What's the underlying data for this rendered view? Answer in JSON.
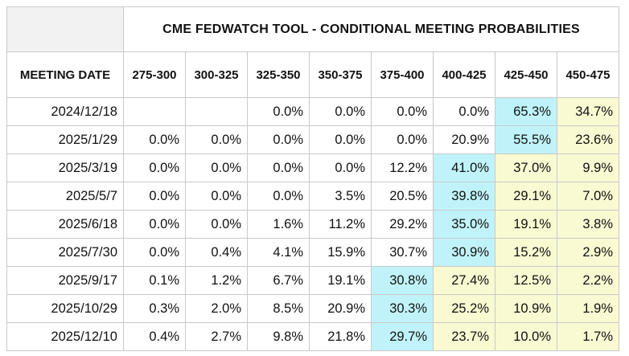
{
  "chart_data": {
    "type": "table",
    "title": "CME FEDWATCH TOOL - CONDITIONAL MEETING PROBABILITIES",
    "row_header_label": "MEETING DATE",
    "columns": [
      "275-300",
      "300-325",
      "325-350",
      "350-375",
      "375-400",
      "400-425",
      "425-450",
      "450-475"
    ],
    "rows": [
      {
        "date": "2024/12/18",
        "values": [
          "",
          "",
          "0.0%",
          "0.0%",
          "0.0%",
          "0.0%",
          "65.3%",
          "34.7%"
        ],
        "highlight": [
          "",
          "",
          "",
          "",
          "",
          "",
          "cyan",
          "yellow"
        ]
      },
      {
        "date": "2025/1/29",
        "values": [
          "0.0%",
          "0.0%",
          "0.0%",
          "0.0%",
          "0.0%",
          "20.9%",
          "55.5%",
          "23.6%"
        ],
        "highlight": [
          "",
          "",
          "",
          "",
          "",
          "",
          "cyan",
          "yellow"
        ]
      },
      {
        "date": "2025/3/19",
        "values": [
          "0.0%",
          "0.0%",
          "0.0%",
          "0.0%",
          "12.2%",
          "41.0%",
          "37.0%",
          "9.9%"
        ],
        "highlight": [
          "",
          "",
          "",
          "",
          "",
          "cyan",
          "yellow",
          "yellow"
        ]
      },
      {
        "date": "2025/5/7",
        "values": [
          "0.0%",
          "0.0%",
          "0.0%",
          "3.5%",
          "20.5%",
          "39.8%",
          "29.1%",
          "7.0%"
        ],
        "highlight": [
          "",
          "",
          "",
          "",
          "",
          "cyan",
          "yellow",
          "yellow"
        ]
      },
      {
        "date": "2025/6/18",
        "values": [
          "0.0%",
          "0.0%",
          "1.6%",
          "11.2%",
          "29.2%",
          "35.0%",
          "19.1%",
          "3.8%"
        ],
        "highlight": [
          "",
          "",
          "",
          "",
          "",
          "cyan",
          "yellow",
          "yellow"
        ]
      },
      {
        "date": "2025/7/30",
        "values": [
          "0.0%",
          "0.4%",
          "4.1%",
          "15.9%",
          "30.7%",
          "30.9%",
          "15.2%",
          "2.9%"
        ],
        "highlight": [
          "",
          "",
          "",
          "",
          "",
          "cyan",
          "yellow",
          "yellow"
        ]
      },
      {
        "date": "2025/9/17",
        "values": [
          "0.1%",
          "1.2%",
          "6.7%",
          "19.1%",
          "30.8%",
          "27.4%",
          "12.5%",
          "2.2%"
        ],
        "highlight": [
          "",
          "",
          "",
          "",
          "cyan",
          "yellow",
          "yellow",
          "yellow"
        ]
      },
      {
        "date": "2025/10/29",
        "values": [
          "0.3%",
          "2.0%",
          "8.5%",
          "20.9%",
          "30.3%",
          "25.2%",
          "10.9%",
          "1.9%"
        ],
        "highlight": [
          "",
          "",
          "",
          "",
          "cyan",
          "yellow",
          "yellow",
          "yellow"
        ]
      },
      {
        "date": "2025/12/10",
        "values": [
          "0.4%",
          "2.7%",
          "9.8%",
          "21.8%",
          "29.7%",
          "23.7%",
          "10.0%",
          "1.7%"
        ],
        "highlight": [
          "",
          "",
          "",
          "",
          "cyan",
          "yellow",
          "yellow",
          "yellow"
        ]
      }
    ],
    "colors": {
      "cyan": "#c0f3f9",
      "yellow": "#f9f9d2",
      "border": "#c9c9c9"
    }
  }
}
